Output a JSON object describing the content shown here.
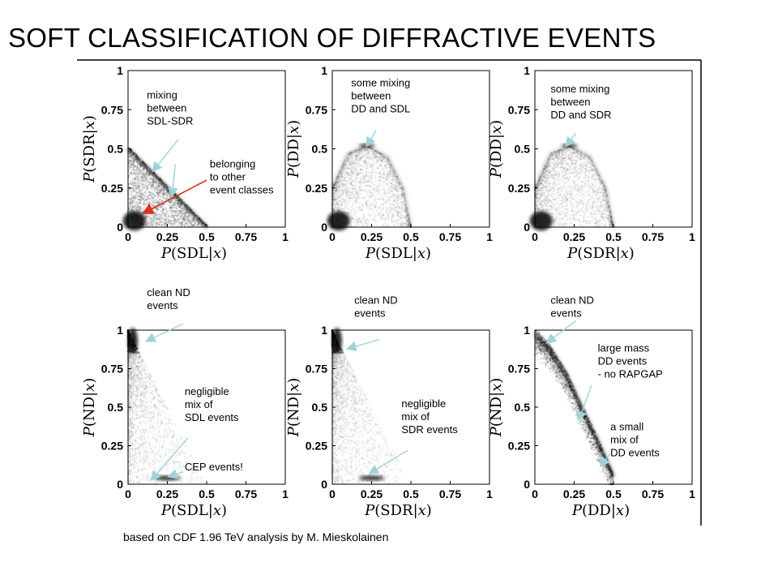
{
  "slide": {
    "title": "SOFT CLASSIFICATION OF DIFFRACTIVE EVENTS",
    "footer": "based on CDF 1.96 TeV analysis by M. Mieskolainen"
  },
  "colors": {
    "arrow_light": "#9fd3d8",
    "arrow_red": "#e0301e",
    "density": "#000000"
  },
  "chart_data": [
    {
      "type": "scatter",
      "shape": "anti_diagonal_band",
      "xlabel": "P(SDL|x)",
      "ylabel": "P(SDR|x)",
      "xlim": [
        0,
        1
      ],
      "ylim": [
        0,
        1
      ],
      "xticks": [
        "0",
        "0.25",
        "0.5",
        "0.75",
        "1"
      ],
      "yticks": [
        "0",
        "0.25",
        "0.5",
        "0.75",
        "1"
      ],
      "density_curve": [
        [
          0.0,
          0.5
        ],
        [
          0.1,
          0.4
        ],
        [
          0.2,
          0.3
        ],
        [
          0.3,
          0.2
        ],
        [
          0.4,
          0.1
        ],
        [
          0.5,
          0.0
        ]
      ],
      "annotations": [
        {
          "text": [
            "mixing",
            "between",
            "SDL-SDR"
          ],
          "tx": 0.12,
          "ty": 0.82,
          "ax": 0.16,
          "ay": 0.36,
          "arrow_from": [
            0.32,
            0.56
          ],
          "color": "light"
        },
        {
          "text": [
            "belonging",
            "to other",
            "event classes"
          ],
          "tx": 0.52,
          "ty": 0.38,
          "ax": 0.1,
          "ay": 0.09,
          "arrow_from": [
            0.5,
            0.3
          ],
          "color": "red"
        },
        {
          "text": [],
          "ax": 0.28,
          "ay": 0.2,
          "arrow_from": [
            0.3,
            0.4
          ],
          "color": "light"
        }
      ]
    },
    {
      "type": "scatter",
      "shape": "dome",
      "xlabel": "P(SDL|x)",
      "ylabel": "P(DD|x)",
      "xlim": [
        0,
        1
      ],
      "ylim": [
        0,
        1
      ],
      "xticks": [
        "0",
        "0.25",
        "0.5",
        "0.75",
        "1"
      ],
      "yticks": [
        "0",
        "0.25",
        "0.5",
        "0.75",
        "1"
      ],
      "density_curve": [
        [
          0.0,
          0.25
        ],
        [
          0.1,
          0.47
        ],
        [
          0.22,
          0.52
        ],
        [
          0.35,
          0.45
        ],
        [
          0.45,
          0.25
        ],
        [
          0.5,
          0.0
        ]
      ],
      "annotations": [
        {
          "text": [
            "some mixing",
            "between",
            "DD and SDL"
          ],
          "tx": 0.12,
          "ty": 0.9,
          "ax": 0.22,
          "ay": 0.52,
          "arrow_from": [
            0.28,
            0.62
          ],
          "color": "light"
        }
      ]
    },
    {
      "type": "scatter",
      "shape": "dome",
      "xlabel": "P(SDR|x)",
      "ylabel": "P(DD|x)",
      "xlim": [
        0,
        1
      ],
      "ylim": [
        0,
        1
      ],
      "xticks": [
        "0",
        "0.25",
        "0.5",
        "0.75",
        "1"
      ],
      "yticks": [
        "0",
        "0.25",
        "0.5",
        "0.75",
        "1"
      ],
      "density_curve": [
        [
          0.0,
          0.25
        ],
        [
          0.1,
          0.47
        ],
        [
          0.22,
          0.52
        ],
        [
          0.35,
          0.45
        ],
        [
          0.45,
          0.25
        ],
        [
          0.5,
          0.0
        ]
      ],
      "annotations": [
        {
          "text": [
            "some mixing",
            "between",
            "DD and SDR"
          ],
          "tx": 0.1,
          "ty": 0.86,
          "ax": 0.2,
          "ay": 0.52,
          "arrow_from": [
            0.26,
            0.6
          ],
          "color": "light"
        }
      ]
    },
    {
      "type": "scatter",
      "shape": "fan_left_corner",
      "xlabel": "P(SDL|x)",
      "ylabel": "P(ND|x)",
      "xlim": [
        0,
        1
      ],
      "ylim": [
        0,
        1
      ],
      "xticks": [
        "0",
        "0.25",
        "0.5",
        "0.75",
        "1"
      ],
      "yticks": [
        "0",
        "0.25",
        "0.5",
        "0.75",
        "1"
      ],
      "density_curve": [
        [
          0.0,
          1.0
        ],
        [
          0.5,
          0.0
        ]
      ],
      "annotations": [
        {
          "text": [
            "clean ND",
            "events"
          ],
          "tx": 0.12,
          "ty": 1.22,
          "ax": 0.12,
          "ay": 0.93,
          "arrow_from": [
            0.35,
            1.04
          ],
          "color": "light"
        },
        {
          "text": [
            "negligible",
            "mix of",
            "SDL events"
          ],
          "tx": 0.36,
          "ty": 0.58,
          "ax": 0.15,
          "ay": 0.03,
          "arrow_from": [
            0.38,
            0.3
          ],
          "color": "light"
        },
        {
          "text": [
            "CEP events!"
          ],
          "tx": 0.36,
          "ty": 0.09,
          "ax": 0.26,
          "ay": 0.05,
          "arrow_from": [
            0.35,
            0.08
          ],
          "color": "light"
        }
      ]
    },
    {
      "type": "scatter",
      "shape": "fan_left_corner",
      "xlabel": "P(SDR|x)",
      "ylabel": "P(ND|x)",
      "xlim": [
        0,
        1
      ],
      "ylim": [
        0,
        1
      ],
      "xticks": [
        "0",
        "0.25",
        "0.5",
        "0.75",
        "1"
      ],
      "yticks": [
        "0",
        "0.25",
        "0.5",
        "0.75",
        "1"
      ],
      "density_curve": [
        [
          0.0,
          1.0
        ],
        [
          0.5,
          0.0
        ]
      ],
      "annotations": [
        {
          "text": [
            "clean ND",
            "events"
          ],
          "tx": 0.14,
          "ty": 1.17,
          "ax": 0.1,
          "ay": 0.88,
          "arrow_from": [
            0.3,
            0.94
          ],
          "color": "light"
        },
        {
          "text": [
            "negligible",
            "mix of",
            "SDR events"
          ],
          "tx": 0.44,
          "ty": 0.5,
          "ax": 0.24,
          "ay": 0.07,
          "arrow_from": [
            0.48,
            0.22
          ],
          "color": "light"
        }
      ]
    },
    {
      "type": "scatter",
      "shape": "diagonal_band",
      "xlabel": "P(DD|x)",
      "ylabel": "P(ND|x)",
      "xlim": [
        0,
        1
      ],
      "ylim": [
        0,
        1
      ],
      "xticks": [
        "0",
        "0.25",
        "0.5",
        "0.75",
        "1"
      ],
      "yticks": [
        "0",
        "0.25",
        "0.5",
        "0.75",
        "1"
      ],
      "density_curve": [
        [
          0.0,
          0.98
        ],
        [
          0.1,
          0.87
        ],
        [
          0.2,
          0.71
        ],
        [
          0.3,
          0.49
        ],
        [
          0.4,
          0.28
        ],
        [
          0.5,
          0.05
        ]
      ],
      "annotations": [
        {
          "text": [
            "clean ND",
            "events"
          ],
          "tx": 0.1,
          "ty": 1.17,
          "ax": 0.08,
          "ay": 0.92,
          "arrow_from": [
            0.26,
            1.06
          ],
          "color": "light"
        },
        {
          "text": [
            "large mass",
            "DD events",
            "- no RAPGAP"
          ],
          "tx": 0.4,
          "ty": 0.86,
          "ax": 0.28,
          "ay": 0.42,
          "arrow_from": [
            0.36,
            0.64
          ],
          "color": "light"
        },
        {
          "text": [
            "a small",
            "mix of",
            "DD events"
          ],
          "tx": 0.48,
          "ty": 0.35,
          "ax": 0.42,
          "ay": 0.12,
          "arrow_from": [
            0.48,
            0.2
          ],
          "color": "light"
        }
      ]
    }
  ]
}
